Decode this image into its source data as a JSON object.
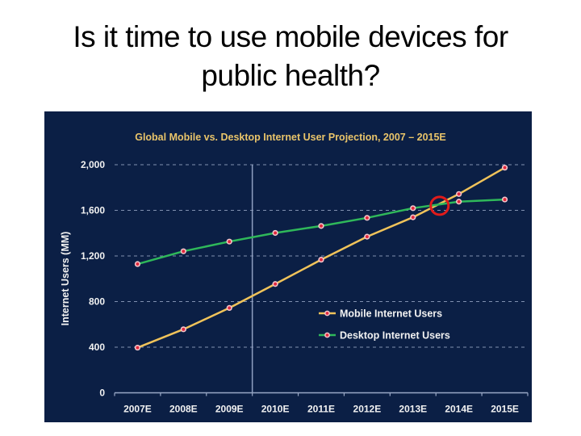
{
  "slide": {
    "title_line1": "Is it time to use mobile devices for",
    "title_line2": "public health?"
  },
  "chart_data": {
    "type": "line",
    "title": "Global Mobile vs. Desktop Internet User Projection, 2007 – 2015E",
    "xlabel": "",
    "ylabel": "Internet Users (MM)",
    "categories": [
      "2007E",
      "2008E",
      "2009E",
      "2010E",
      "2011E",
      "2012E",
      "2013E",
      "2014E",
      "2015E"
    ],
    "ylim": [
      0,
      2000
    ],
    "yticks": [
      0,
      400,
      800,
      1200,
      1600,
      2000
    ],
    "ytick_labels": [
      "0",
      "400",
      "800",
      "1,200",
      "1,600",
      "2,000"
    ],
    "grid": true,
    "legend_position": "center-right",
    "series": [
      {
        "name": "Mobile Internet Users",
        "color": "#f0c35a",
        "values": [
          396,
          557,
          744,
          954,
          1167,
          1369,
          1539,
          1743,
          1974
        ]
      },
      {
        "name": "Desktop Internet Users",
        "color": "#2fb85a",
        "values": [
          1129,
          1241,
          1326,
          1402,
          1463,
          1534,
          1619,
          1676,
          1695
        ]
      }
    ],
    "marker_color": "#e0283c",
    "annotations": [
      {
        "type": "vertical-line",
        "between": [
          "2009E",
          "2010E"
        ],
        "color": "#8f9fc0"
      },
      {
        "type": "circle",
        "label": "crossover",
        "near": "2013E-2014E",
        "value": 1640,
        "color": "#e01b1b"
      }
    ]
  }
}
